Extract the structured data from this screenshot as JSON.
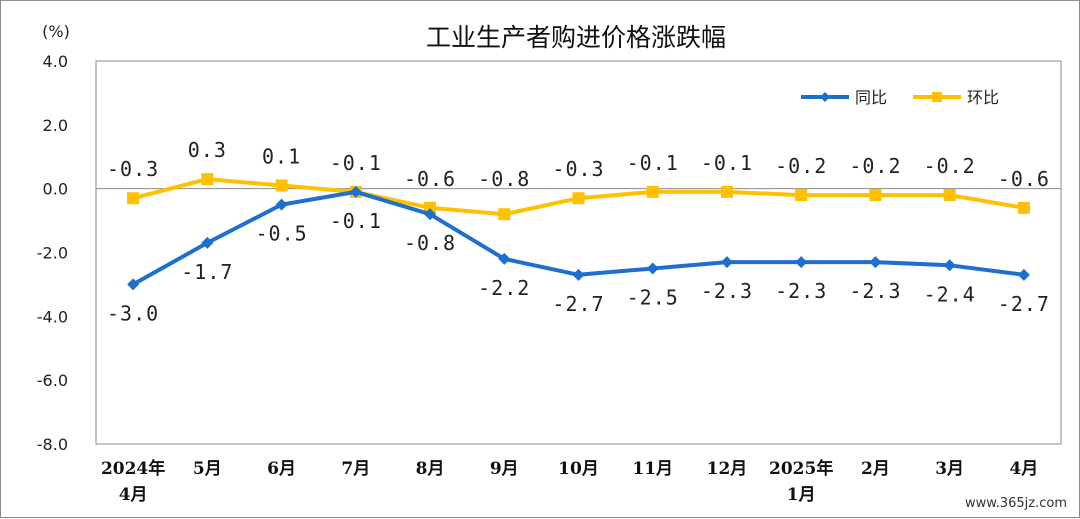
{
  "chart_data": {
    "type": "line",
    "title": "工业生产者购进价格涨跌幅",
    "ylabel": "(%)",
    "ylim": [
      -8,
      4
    ],
    "yticks": [
      "4.0",
      "2.0",
      "0.0",
      "-2.0",
      "-4.0",
      "-6.0",
      "-8.0"
    ],
    "ytick_values": [
      4,
      2,
      0,
      -2,
      -4,
      -6,
      -8
    ],
    "categories": [
      [
        "2024年",
        "4月"
      ],
      [
        "5月"
      ],
      [
        "6月"
      ],
      [
        "7月"
      ],
      [
        "8月"
      ],
      [
        "9月"
      ],
      [
        "10月"
      ],
      [
        "11月"
      ],
      [
        "12月"
      ],
      [
        "2025年",
        "1月"
      ],
      [
        "2月"
      ],
      [
        "3月"
      ],
      [
        "4月"
      ]
    ],
    "series": [
      {
        "name": "同比",
        "color": "#1f6fce",
        "marker": "diamond",
        "values": [
          -3.0,
          -1.7,
          -0.5,
          -0.1,
          -0.8,
          -2.2,
          -2.7,
          -2.5,
          -2.3,
          -2.3,
          -2.3,
          -2.4,
          -2.7
        ],
        "labels": [
          "-3.0",
          "-1.7",
          "-0.5",
          "-0.1",
          "-0.8",
          "-2.2",
          "-2.7",
          "-2.5",
          "-2.3",
          "-2.3",
          "-2.3",
          "-2.4",
          "-2.7"
        ]
      },
      {
        "name": "环比",
        "color": "#ffc000",
        "marker": "square",
        "values": [
          -0.3,
          0.3,
          0.1,
          -0.1,
          -0.6,
          -0.8,
          -0.3,
          -0.1,
          -0.1,
          -0.2,
          -0.2,
          -0.2,
          -0.6
        ],
        "labels": [
          "-0.3",
          "0.3",
          "0.1",
          "-0.1",
          "-0.6",
          "-0.8",
          "-0.3",
          "-0.1",
          "-0.1",
          "-0.2",
          "-0.2",
          "-0.2",
          "-0.6"
        ]
      }
    ],
    "grid": false,
    "legend_position": "top-right"
  },
  "watermark": "www.365jz.com"
}
